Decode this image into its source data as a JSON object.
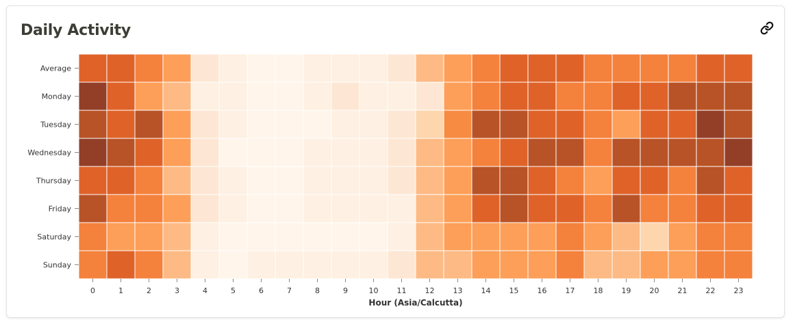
{
  "card": {
    "title": "Daily Activity",
    "link_icon": "link-icon"
  },
  "chart_data": {
    "type": "heatmap",
    "title": "Daily Activity",
    "xlabel": "Hour (Asia/Calcutta)",
    "ylabel": "",
    "x": [
      "0",
      "1",
      "2",
      "3",
      "4",
      "5",
      "6",
      "7",
      "8",
      "9",
      "10",
      "11",
      "12",
      "13",
      "14",
      "15",
      "16",
      "17",
      "18",
      "19",
      "20",
      "21",
      "22",
      "23"
    ],
    "y": [
      "Average",
      "Monday",
      "Tuesday",
      "Wednesday",
      "Thursday",
      "Friday",
      "Saturday",
      "Sunday"
    ],
    "values": [
      [
        8,
        8,
        7,
        5,
        2,
        1,
        0,
        0,
        1,
        1,
        1,
        2,
        4,
        5,
        7,
        8,
        8,
        8,
        7,
        7,
        7,
        7,
        8,
        8
      ],
      [
        10,
        8,
        5,
        4,
        1,
        1,
        0,
        0,
        1,
        2,
        1,
        1,
        2,
        5,
        7,
        8,
        8,
        7,
        7,
        8,
        8,
        9,
        9,
        9
      ],
      [
        9,
        8,
        9,
        5,
        2,
        1,
        0,
        0,
        0,
        1,
        1,
        2,
        3,
        6,
        9,
        9,
        8,
        8,
        7,
        5,
        8,
        8,
        10,
        9
      ],
      [
        10,
        9,
        8,
        5,
        2,
        0,
        0,
        0,
        1,
        1,
        1,
        2,
        4,
        5,
        7,
        8,
        9,
        9,
        7,
        9,
        9,
        9,
        9,
        10
      ],
      [
        8,
        8,
        7,
        4,
        2,
        1,
        0,
        0,
        1,
        1,
        1,
        2,
        4,
        5,
        9,
        9,
        8,
        7,
        5,
        8,
        8,
        7,
        9,
        8
      ],
      [
        9,
        7,
        7,
        5,
        2,
        1,
        0,
        0,
        1,
        1,
        1,
        1,
        4,
        5,
        8,
        9,
        8,
        8,
        7,
        9,
        7,
        7,
        8,
        8
      ],
      [
        7,
        5,
        5,
        4,
        1,
        0,
        0,
        0,
        0,
        0,
        0,
        1,
        4,
        5,
        5,
        5,
        5,
        7,
        5,
        4,
        3,
        5,
        7,
        7
      ],
      [
        7,
        8,
        7,
        4,
        1,
        0,
        1,
        1,
        1,
        1,
        1,
        2,
        4,
        4,
        5,
        5,
        5,
        7,
        4,
        4,
        5,
        5,
        7,
        7
      ]
    ],
    "value_range": [
      0,
      10
    ],
    "color_scale": [
      "#fff5eb",
      "#fef0e2",
      "#fde7d4",
      "#fdd6ae",
      "#fdba84",
      "#fd9f58",
      "#f88b42",
      "#f4813c",
      "#df6329",
      "#b85327",
      "#933f28"
    ],
    "grid_color": "#ffffff",
    "legend": "none"
  }
}
